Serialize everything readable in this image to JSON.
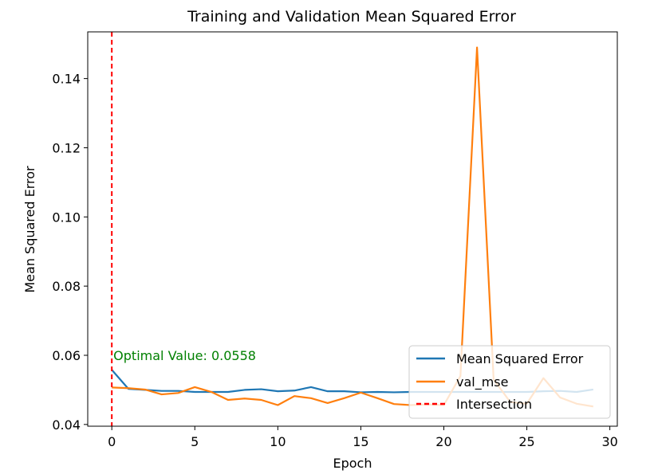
{
  "chart_data": {
    "type": "line",
    "title": "Training and Validation Mean Squared Error",
    "xlabel": "Epoch",
    "ylabel": "Mean Squared Error",
    "xlim": [
      -1.45,
      30.45
    ],
    "ylim": [
      0.0395,
      0.1535
    ],
    "xticks": [
      0,
      5,
      10,
      15,
      20,
      25,
      30
    ],
    "yticks": [
      0.04,
      0.06,
      0.08,
      0.1,
      0.12,
      0.14
    ],
    "ytick_labels": [
      "0.04",
      "0.06",
      "0.08",
      "0.10",
      "0.12",
      "0.14"
    ],
    "grid": false,
    "legend_position": "lower-right",
    "x": [
      0,
      1,
      2,
      3,
      4,
      5,
      6,
      7,
      8,
      9,
      10,
      11,
      12,
      13,
      14,
      15,
      16,
      17,
      18,
      19,
      20,
      21,
      22,
      23,
      24,
      25,
      26,
      27,
      28,
      29
    ],
    "series": [
      {
        "name": "Mean Squared Error",
        "color": "#1f77b4",
        "values": [
          0.0558,
          0.0503,
          0.05,
          0.0497,
          0.0497,
          0.0494,
          0.0494,
          0.0494,
          0.05,
          0.0502,
          0.0496,
          0.0498,
          0.0508,
          0.0496,
          0.0496,
          0.0493,
          0.0494,
          0.0493,
          0.0494,
          0.0494,
          0.0494,
          0.0494,
          0.0494,
          0.0494,
          0.0494,
          0.0494,
          0.0496,
          0.0497,
          0.0494,
          0.0501
        ]
      },
      {
        "name": "val_mse",
        "color": "#ff7f0e",
        "values": [
          0.0507,
          0.0505,
          0.0501,
          0.0487,
          0.0491,
          0.0508,
          0.0494,
          0.0471,
          0.0475,
          0.0471,
          0.0456,
          0.0482,
          0.0476,
          0.0462,
          0.0476,
          0.0492,
          0.0476,
          0.0459,
          0.0456,
          0.0458,
          0.0456,
          0.054,
          0.149,
          0.053,
          0.0465,
          0.046,
          0.0534,
          0.0478,
          0.046,
          0.0452
        ]
      }
    ],
    "vline": {
      "name": "Intersection",
      "x": 0,
      "color": "#ff0000",
      "style": "dashed"
    },
    "annotation": {
      "text": "Optimal Value: 0.0558",
      "x": 0,
      "y": 0.0558,
      "color": "#008000"
    }
  }
}
